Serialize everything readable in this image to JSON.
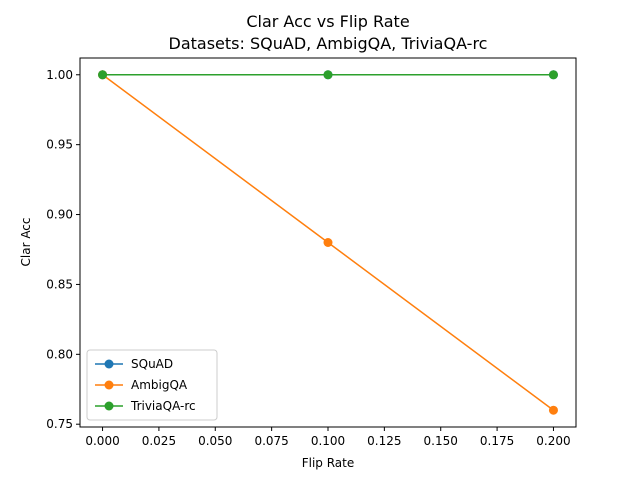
{
  "chart_data": {
    "type": "line",
    "title": "Clar Acc vs Flip Rate",
    "subtitle": "Datasets: SQuAD, AmbigQA, TriviaQA-rc",
    "xlabel": "Flip Rate",
    "ylabel": "Clar Acc",
    "x": [
      0.0,
      0.1,
      0.2
    ],
    "xlim": [
      -0.01,
      0.21
    ],
    "ylim": [
      0.748,
      1.012
    ],
    "xticks": [
      "0.000",
      "0.025",
      "0.050",
      "0.075",
      "0.100",
      "0.125",
      "0.150",
      "0.175",
      "0.200"
    ],
    "yticks": [
      "0.75",
      "0.80",
      "0.85",
      "0.90",
      "0.95",
      "1.00"
    ],
    "grid": false,
    "legend_position": "lower-left",
    "series": [
      {
        "name": "SQuAD",
        "color": "#1f77b4",
        "values": [
          1.0,
          1.0,
          1.0
        ]
      },
      {
        "name": "AmbigQA",
        "color": "#ff7f0e",
        "values": [
          1.0,
          0.88,
          0.76
        ]
      },
      {
        "name": "TriviaQA-rc",
        "color": "#2ca02c",
        "values": [
          1.0,
          1.0,
          1.0
        ]
      }
    ]
  }
}
